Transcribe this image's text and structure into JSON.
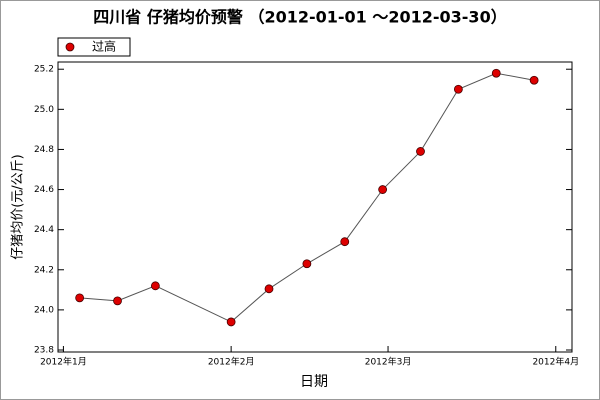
{
  "chart_data": {
    "type": "line",
    "title": "四川省 仔猪均价预警 （2012-01-01 ～2012-03-30）",
    "x_label": "日期",
    "y_label": "仔猪均价(元/公斤)",
    "x": [
      3,
      10,
      17,
      31,
      38,
      45,
      52,
      59,
      66,
      73,
      80,
      87
    ],
    "series": [
      {
        "name": "过高",
        "color": "#dd0000",
        "line_color": "#555555",
        "values": [
          24.06,
          24.045,
          24.12,
          23.94,
          24.105,
          24.23,
          24.34,
          24.6,
          24.79,
          25.1,
          25.18,
          25.145
        ]
      }
    ],
    "xlim": [
      -1,
      94
    ],
    "xticks": [
      {
        "value": 0,
        "label": "2012年1月"
      },
      {
        "value": 31,
        "label": "2012年2月"
      },
      {
        "value": 60,
        "label": "2012年3月"
      },
      {
        "value": 91,
        "label": "2012年4月"
      }
    ],
    "ylim": [
      23.79,
      25.236
    ],
    "yticks": [
      23.8,
      {
        "value": 24,
        "label": "24.0"
      },
      24.2,
      24.4,
      24.6,
      24.8,
      {
        "value": 25,
        "label": "25.0"
      },
      25.2
    ],
    "legend": "top-left",
    "grid": false
  }
}
